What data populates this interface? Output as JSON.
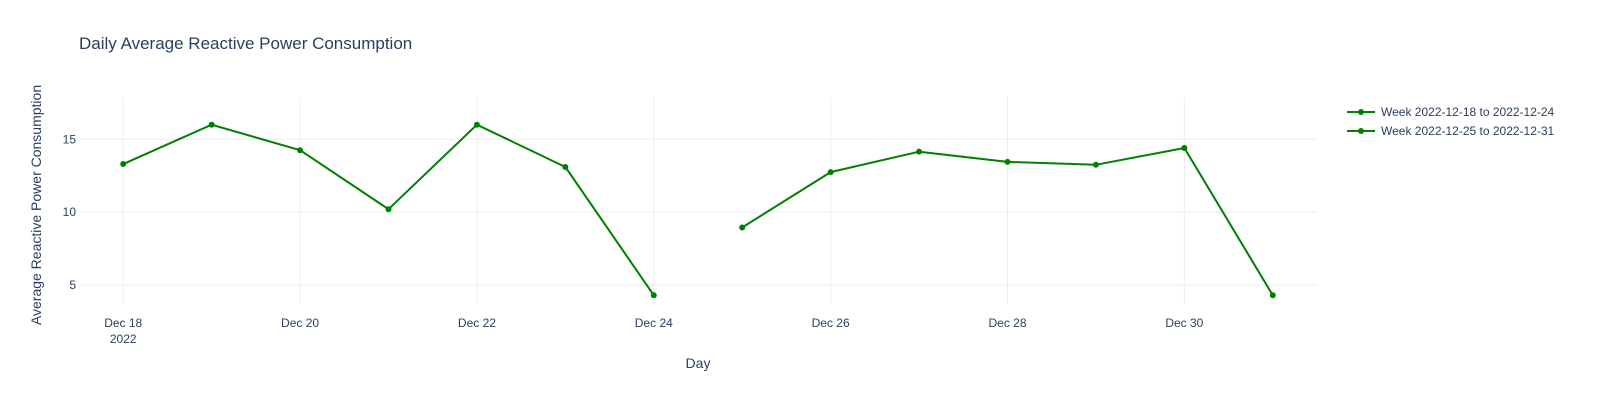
{
  "chart_data": {
    "type": "line",
    "title": "Daily Average Reactive Power Consumption",
    "xlabel": "Day",
    "ylabel": "Average Reactive Power Consumption",
    "x_ticks": [
      {
        "date": "2022-12-18",
        "label": "Dec 18",
        "sublabel": "2022"
      },
      {
        "date": "2022-12-20",
        "label": "Dec 20"
      },
      {
        "date": "2022-12-22",
        "label": "Dec 22"
      },
      {
        "date": "2022-12-24",
        "label": "Dec 24"
      },
      {
        "date": "2022-12-26",
        "label": "Dec 26"
      },
      {
        "date": "2022-12-28",
        "label": "Dec 28"
      },
      {
        "date": "2022-12-30",
        "label": "Dec 30"
      }
    ],
    "xlim": [
      "2022-12-17",
      "2022-12-31"
    ],
    "y_ticks": [
      5,
      10,
      15
    ],
    "ylim": [
      3.7,
      17.9
    ],
    "grid": true,
    "legend_position": "top-right",
    "series": [
      {
        "name": "Week 2022-12-18 to 2022-12-24",
        "color": "#008000",
        "x": [
          "2022-12-18",
          "2022-12-19",
          "2022-12-20",
          "2022-12-21",
          "2022-12-22",
          "2022-12-23",
          "2022-12-24"
        ],
        "y": [
          13.3,
          16.0,
          14.25,
          10.2,
          16.0,
          13.1,
          4.3
        ]
      },
      {
        "name": "Week 2022-12-25 to 2022-12-31",
        "color": "#008000",
        "x": [
          "2022-12-25",
          "2022-12-26",
          "2022-12-27",
          "2022-12-28",
          "2022-12-29",
          "2022-12-30",
          "2022-12-31"
        ],
        "y": [
          8.95,
          12.75,
          14.15,
          13.45,
          13.25,
          14.4,
          4.3
        ]
      }
    ]
  }
}
